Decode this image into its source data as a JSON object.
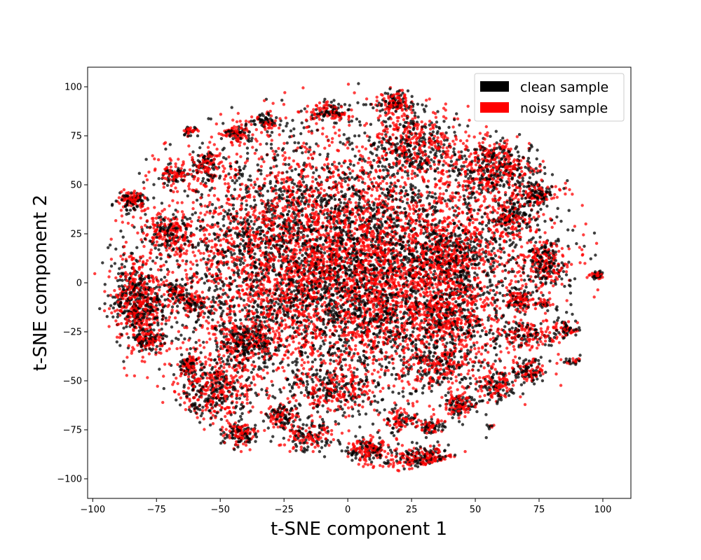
{
  "chart_data": {
    "type": "scatter",
    "title": "",
    "xlabel": "t-SNE component 1",
    "ylabel": "t-SNE component 2",
    "xlim": [
      -102,
      111
    ],
    "ylim": [
      -110,
      110
    ],
    "xticks": [
      -100,
      -75,
      -50,
      -25,
      0,
      25,
      50,
      75,
      100
    ],
    "yticks": [
      -100,
      -75,
      -50,
      -25,
      0,
      25,
      50,
      75,
      100
    ],
    "grid": false,
    "legend_position": "top-right",
    "series": [
      {
        "name": "clean sample",
        "color": "#000000"
      },
      {
        "name": "noisy sample",
        "color": "#ff0000"
      }
    ],
    "clusters": [
      {
        "cx": 0,
        "cy": 15,
        "sx": 38,
        "sy": 32,
        "n": 5200
      },
      {
        "cx": -20,
        "cy": 10,
        "sx": 25,
        "sy": 30,
        "n": 1500
      },
      {
        "cx": 15,
        "cy": -10,
        "sx": 30,
        "sy": 25,
        "n": 1500
      },
      {
        "cx": -84,
        "cy": 42,
        "sx": 3,
        "sy": 2.5,
        "n": 130
      },
      {
        "cx": -62,
        "cy": 78,
        "sx": 1.5,
        "sy": 1.5,
        "n": 40
      },
      {
        "cx": -43,
        "cy": 76,
        "sx": 3,
        "sy": 2.5,
        "n": 100
      },
      {
        "cx": -32,
        "cy": 82,
        "sx": 2.5,
        "sy": 2,
        "n": 80
      },
      {
        "cx": -8,
        "cy": 87,
        "sx": 4,
        "sy": 2,
        "n": 120
      },
      {
        "cx": 19,
        "cy": 92,
        "sx": 3.5,
        "sy": 3,
        "n": 160
      },
      {
        "cx": 27,
        "cy": 70,
        "sx": 8,
        "sy": 8,
        "n": 420
      },
      {
        "cx": 58,
        "cy": 58,
        "sx": 8,
        "sy": 8,
        "n": 500
      },
      {
        "cx": 75,
        "cy": 45,
        "sx": 3,
        "sy": 3,
        "n": 130
      },
      {
        "cx": 64,
        "cy": 33,
        "sx": 5,
        "sy": 5,
        "n": 200
      },
      {
        "cx": 77,
        "cy": 10,
        "sx": 4,
        "sy": 6,
        "n": 260
      },
      {
        "cx": 98,
        "cy": 4,
        "sx": 1.5,
        "sy": 1,
        "n": 40
      },
      {
        "cx": 67,
        "cy": -9,
        "sx": 3,
        "sy": 3,
        "n": 120
      },
      {
        "cx": 78,
        "cy": -11,
        "sx": 1.5,
        "sy": 1.5,
        "n": 30
      },
      {
        "cx": 70,
        "cy": -27,
        "sx": 7,
        "sy": 3,
        "n": 170
      },
      {
        "cx": 86,
        "cy": -24,
        "sx": 2.5,
        "sy": 2,
        "n": 60
      },
      {
        "cx": 92,
        "cy": -40,
        "sx": 4,
        "sy": 1,
        "n": 70
      },
      {
        "cx": 71,
        "cy": -45,
        "sx": 3,
        "sy": 3,
        "n": 110
      },
      {
        "cx": 59,
        "cy": -52,
        "sx": 4,
        "sy": 4,
        "n": 140
      },
      {
        "cx": 44,
        "cy": -62,
        "sx": 3,
        "sy": 3,
        "n": 130
      },
      {
        "cx": 30,
        "cy": -90,
        "sx": 8,
        "sy": 3,
        "n": 300
      },
      {
        "cx": 33,
        "cy": -73,
        "sx": 3,
        "sy": 2,
        "n": 80
      },
      {
        "cx": 20,
        "cy": -70,
        "sx": 3,
        "sy": 3,
        "n": 90
      },
      {
        "cx": 8,
        "cy": -85,
        "sx": 4,
        "sy": 3,
        "n": 180
      },
      {
        "cx": -15,
        "cy": -78,
        "sx": 5,
        "sy": 4,
        "n": 160
      },
      {
        "cx": -26,
        "cy": -68,
        "sx": 3,
        "sy": 3,
        "n": 110
      },
      {
        "cx": -42,
        "cy": -77,
        "sx": 3,
        "sy": 3,
        "n": 150
      },
      {
        "cx": -52,
        "cy": -55,
        "sx": 7,
        "sy": 8,
        "n": 420
      },
      {
        "cx": -62,
        "cy": -42,
        "sx": 2.5,
        "sy": 3,
        "n": 90
      },
      {
        "cx": -82,
        "cy": -10,
        "sx": 5,
        "sy": 10,
        "n": 620
      },
      {
        "cx": -78,
        "cy": -30,
        "sx": 3,
        "sy": 3,
        "n": 120
      },
      {
        "cx": -70,
        "cy": 25,
        "sx": 5,
        "sy": 5,
        "n": 220
      },
      {
        "cx": -68,
        "cy": 55,
        "sx": 3,
        "sy": 3,
        "n": 90
      },
      {
        "cx": -56,
        "cy": 60,
        "sx": 3,
        "sy": 4,
        "n": 110
      },
      {
        "cx": -68,
        "cy": -5,
        "sx": 3,
        "sy": 3,
        "n": 90
      },
      {
        "cx": -60,
        "cy": -10,
        "sx": 3,
        "sy": 3,
        "n": 90
      },
      {
        "cx": 56,
        "cy": -73,
        "sx": 0.8,
        "sy": 0.8,
        "n": 8
      },
      {
        "cx": 37,
        "cy": -42,
        "sx": 6,
        "sy": 6,
        "n": 220
      },
      {
        "cx": 40,
        "cy": 15,
        "sx": 8,
        "sy": 8,
        "n": 380
      },
      {
        "cx": -40,
        "cy": -30,
        "sx": 7,
        "sy": 6,
        "n": 300
      },
      {
        "cx": -6,
        "cy": -55,
        "sx": 8,
        "sy": 5,
        "n": 260
      },
      {
        "cx": 40,
        "cy": -15,
        "sx": 8,
        "sy": 8,
        "n": 300
      }
    ]
  }
}
